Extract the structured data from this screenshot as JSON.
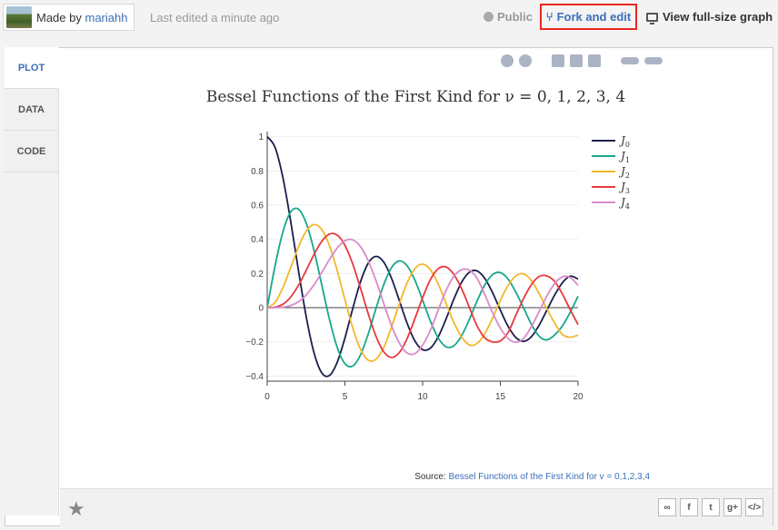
{
  "header": {
    "made_by_prefix": "Made by",
    "author": "mariahh",
    "last_edited": "Last edited a minute ago",
    "public_label": "Public",
    "fork_label": "Fork and edit",
    "fork_icon": "⑂",
    "view_full_label": "View full-size graph"
  },
  "tabs": [
    {
      "label": "PLOT",
      "active": true
    },
    {
      "label": "DATA",
      "active": false
    },
    {
      "label": "CODE",
      "active": false
    }
  ],
  "source": {
    "prefix": "Source:",
    "link": "Bessel Functions of the First Kind for v = 0,1,2,3,4"
  },
  "share_icons": [
    "link-icon",
    "facebook-icon",
    "twitter-icon",
    "googleplus-icon",
    "embed-icon"
  ],
  "share_glyphs": [
    "∞",
    "f",
    "t",
    "g+",
    "</>"
  ],
  "chart_data": {
    "type": "line",
    "title": "Bessel Functions of the First Kind for ν = 0, 1, 2, 3, 4",
    "xlabel": "",
    "ylabel": "",
    "xlim": [
      0,
      20
    ],
    "ylim": [
      -0.43,
      1.03
    ],
    "xticks": [
      0,
      5,
      10,
      15,
      20
    ],
    "yticks": [
      -0.4,
      -0.2,
      0,
      0.2,
      0.4,
      0.6,
      0.8,
      1
    ],
    "ytick_labels": [
      "−0.4",
      "−0.2",
      "0",
      "0.2",
      "0.4",
      "0.6",
      "0.8",
      "1"
    ],
    "legend_position": "right",
    "x": [
      0,
      0.5,
      1,
      1.5,
      2,
      2.5,
      3,
      3.5,
      4,
      4.5,
      5,
      5.5,
      6,
      6.5,
      7,
      7.5,
      8,
      8.5,
      9,
      9.5,
      10,
      10.5,
      11,
      11.5,
      12,
      12.5,
      13,
      13.5,
      14,
      14.5,
      15,
      15.5,
      16,
      16.5,
      17,
      17.5,
      18,
      18.5,
      19,
      19.5,
      20
    ],
    "series": [
      {
        "name": "J",
        "sub": "0",
        "color": "#1b1f4e",
        "values": [
          1,
          0.9385,
          0.7652,
          0.5118,
          0.2239,
          -0.0484,
          -0.2601,
          -0.3801,
          -0.3971,
          -0.3205,
          -0.1776,
          -0.0068,
          0.1506,
          0.2601,
          0.3001,
          0.2663,
          0.1717,
          0.0419,
          -0.0903,
          -0.1939,
          -0.2459,
          -0.2366,
          -0.1712,
          -0.0677,
          0.0477,
          0.1469,
          0.2069,
          0.215,
          0.1711,
          0.0875,
          -0.0142,
          -0.1092,
          -0.1749,
          -0.1969,
          -0.1699,
          -0.102,
          -0.0134,
          0.0747,
          0.1466,
          0.1843,
          0.167
        ]
      },
      {
        "name": "J",
        "sub": "1",
        "color": "#17a88a",
        "values": [
          0,
          0.2423,
          0.4401,
          0.5579,
          0.5767,
          0.4971,
          0.3391,
          0.1374,
          -0.066,
          -0.2311,
          -0.3276,
          -0.3414,
          -0.2767,
          -0.1538,
          -0.0047,
          0.1352,
          0.2346,
          0.2731,
          0.2453,
          0.1613,
          0.0435,
          -0.0789,
          -0.1768,
          -0.2284,
          -0.2234,
          -0.1655,
          -0.0703,
          0.038,
          0.1334,
          0.1934,
          0.2051,
          0.1672,
          0.0904,
          -0.002,
          -0.0977,
          -0.1672,
          -0.188,
          -0.159,
          -0.1055,
          -0.0262,
          0.0668
        ]
      },
      {
        "name": "J",
        "sub": "2",
        "color": "#f3b72b",
        "values": [
          0,
          0.0306,
          0.1149,
          0.2321,
          0.3528,
          0.4461,
          0.4861,
          0.4586,
          0.3641,
          0.2178,
          0.0466,
          -0.1173,
          -0.2429,
          -0.3074,
          -0.3014,
          -0.2329,
          -0.113,
          0.0223,
          0.1448,
          0.2279,
          0.2546,
          0.2216,
          0.139,
          0.0283,
          -0.0849,
          -0.1703,
          -0.2177,
          -0.2094,
          -0.152,
          -0.0609,
          0.0415,
          0.1307,
          0.1862,
          0.1973,
          0.1584,
          0.0814,
          -0.0075,
          -0.0911,
          -0.1578,
          -0.1731,
          -0.1603
        ]
      },
      {
        "name": "J",
        "sub": "3",
        "color": "#e8393c",
        "values": [
          0,
          0.0026,
          0.0196,
          0.061,
          0.1289,
          0.2166,
          0.3091,
          0.3868,
          0.4302,
          0.4247,
          0.3648,
          0.2561,
          0.1148,
          -0.0353,
          -0.1676,
          -0.258,
          -0.2911,
          -0.2626,
          -0.1809,
          -0.0652,
          0.0584,
          0.1645,
          0.2273,
          0.2381,
          0.1951,
          0.1126,
          0.0034,
          -0.1056,
          -0.1768,
          -0.2002,
          -0.194,
          -0.1448,
          -0.0438,
          0.0544,
          0.1349,
          0.1825,
          0.1858,
          0.1525,
          0.0789,
          -0.0129,
          -0.0989
        ]
      },
      {
        "name": "J",
        "sub": "4",
        "color": "#d88bc8",
        "values": [
          0,
          0.0002,
          0.0025,
          0.0118,
          0.034,
          0.0738,
          0.132,
          0.2044,
          0.2811,
          0.3484,
          0.3912,
          0.3967,
          0.3576,
          0.2748,
          0.1578,
          0.0238,
          -0.1054,
          -0.2067,
          -0.2655,
          -0.2689,
          -0.2196,
          -0.1317,
          -0.015,
          0.0991,
          0.1825,
          0.2216,
          0.2193,
          0.172,
          0.0762,
          -0.029,
          -0.1192,
          -0.1798,
          -0.2026,
          -0.179,
          -0.1112,
          -0.022,
          0.0696,
          0.1413,
          0.1805,
          0.1766,
          0.1307
        ]
      }
    ]
  }
}
